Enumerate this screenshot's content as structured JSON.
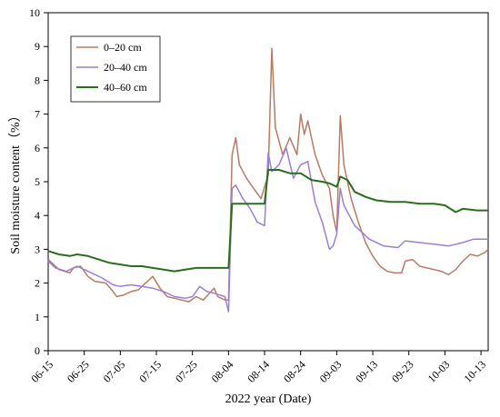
{
  "chart_data": {
    "type": "line",
    "xlabel": "2022 year (Date)",
    "ylabel": "Soil moisture content（%）",
    "ylim": [
      0,
      10
    ],
    "yticks": [
      "0",
      "1",
      "2",
      "3",
      "4",
      "5",
      "6",
      "7",
      "8",
      "9",
      "10"
    ],
    "xlim": [
      "06-15",
      "10-15"
    ],
    "xticks": [
      "06-15",
      "06-25",
      "07-05",
      "07-15",
      "07-25",
      "08-04",
      "08-14",
      "08-24",
      "09-03",
      "09-13",
      "09-23",
      "10-03",
      "10-13"
    ],
    "grid": false,
    "legend_position": "top-left",
    "series": [
      {
        "name": "0–20 cm",
        "color": "#b87a63",
        "points": [
          [
            "06-15",
            2.7
          ],
          [
            "06-18",
            2.4
          ],
          [
            "06-21",
            2.3
          ],
          [
            "06-22",
            2.45
          ],
          [
            "06-24",
            2.5
          ],
          [
            "06-26",
            2.2
          ],
          [
            "06-28",
            2.05
          ],
          [
            "07-01",
            2.0
          ],
          [
            "07-03",
            1.75
          ],
          [
            "07-04",
            1.6
          ],
          [
            "07-06",
            1.65
          ],
          [
            "07-08",
            1.75
          ],
          [
            "07-10",
            1.8
          ],
          [
            "07-11",
            1.9
          ],
          [
            "07-13",
            2.1
          ],
          [
            "07-14",
            2.2
          ],
          [
            "07-16",
            1.85
          ],
          [
            "07-18",
            1.6
          ],
          [
            "07-20",
            1.55
          ],
          [
            "07-22",
            1.5
          ],
          [
            "07-24",
            1.45
          ],
          [
            "07-26",
            1.6
          ],
          [
            "07-28",
            1.5
          ],
          [
            "07-31",
            1.85
          ],
          [
            "08-01",
            1.6
          ],
          [
            "08-03",
            1.5
          ],
          [
            "08-04",
            1.5
          ],
          [
            "08-05",
            5.8
          ],
          [
            "08-06",
            6.3
          ],
          [
            "08-07",
            5.5
          ],
          [
            "08-09",
            5.1
          ],
          [
            "08-11",
            4.8
          ],
          [
            "08-13",
            4.5
          ],
          [
            "08-15",
            5.2
          ],
          [
            "08-16",
            8.95
          ],
          [
            "08-17",
            6.6
          ],
          [
            "08-19",
            5.8
          ],
          [
            "08-21",
            6.3
          ],
          [
            "08-23",
            5.8
          ],
          [
            "08-24",
            7.0
          ],
          [
            "08-25",
            6.4
          ],
          [
            "08-26",
            6.8
          ],
          [
            "08-28",
            5.8
          ],
          [
            "08-30",
            5.2
          ],
          [
            "09-01",
            4.8
          ],
          [
            "09-02",
            4.0
          ],
          [
            "09-03",
            3.5
          ],
          [
            "09-04",
            6.95
          ],
          [
            "09-05",
            5.5
          ],
          [
            "09-07",
            4.5
          ],
          [
            "09-09",
            3.8
          ],
          [
            "09-11",
            3.2
          ],
          [
            "09-13",
            2.8
          ],
          [
            "09-15",
            2.5
          ],
          [
            "09-17",
            2.35
          ],
          [
            "09-19",
            2.3
          ],
          [
            "09-21",
            2.3
          ],
          [
            "09-22",
            2.65
          ],
          [
            "09-24",
            2.7
          ],
          [
            "09-26",
            2.5
          ],
          [
            "09-28",
            2.45
          ],
          [
            "09-30",
            2.4
          ],
          [
            "10-02",
            2.35
          ],
          [
            "10-04",
            2.25
          ],
          [
            "10-06",
            2.4
          ],
          [
            "10-08",
            2.65
          ],
          [
            "10-10",
            2.85
          ],
          [
            "10-12",
            2.8
          ],
          [
            "10-14",
            2.9
          ],
          [
            "10-15",
            3.0
          ]
        ]
      },
      {
        "name": "20–40 cm",
        "color": "#9b7fd6",
        "points": [
          [
            "06-15",
            2.65
          ],
          [
            "06-17",
            2.45
          ],
          [
            "06-20",
            2.35
          ],
          [
            "06-23",
            2.5
          ],
          [
            "06-26",
            2.35
          ],
          [
            "06-30",
            2.15
          ],
          [
            "07-03",
            1.95
          ],
          [
            "07-05",
            1.9
          ],
          [
            "07-08",
            1.95
          ],
          [
            "07-11",
            1.9
          ],
          [
            "07-14",
            1.85
          ],
          [
            "07-17",
            1.75
          ],
          [
            "07-20",
            1.6
          ],
          [
            "07-23",
            1.55
          ],
          [
            "07-25",
            1.6
          ],
          [
            "07-27",
            1.9
          ],
          [
            "07-29",
            1.75
          ],
          [
            "07-31",
            1.7
          ],
          [
            "08-03",
            1.6
          ],
          [
            "08-04",
            1.15
          ],
          [
            "08-05",
            4.8
          ],
          [
            "08-06",
            4.9
          ],
          [
            "08-08",
            4.5
          ],
          [
            "08-10",
            4.2
          ],
          [
            "08-12",
            3.8
          ],
          [
            "08-14",
            3.7
          ],
          [
            "08-15",
            5.85
          ],
          [
            "08-16",
            5.3
          ],
          [
            "08-18",
            5.5
          ],
          [
            "08-20",
            6.0
          ],
          [
            "08-22",
            5.1
          ],
          [
            "08-24",
            5.5
          ],
          [
            "08-26",
            5.6
          ],
          [
            "08-28",
            4.4
          ],
          [
            "08-30",
            3.8
          ],
          [
            "09-01",
            3.0
          ],
          [
            "09-02",
            3.1
          ],
          [
            "09-03",
            3.45
          ],
          [
            "09-04",
            4.8
          ],
          [
            "09-05",
            4.3
          ],
          [
            "09-08",
            3.7
          ],
          [
            "09-12",
            3.3
          ],
          [
            "09-16",
            3.1
          ],
          [
            "09-20",
            3.05
          ],
          [
            "09-22",
            3.25
          ],
          [
            "09-26",
            3.2
          ],
          [
            "09-30",
            3.15
          ],
          [
            "10-04",
            3.1
          ],
          [
            "10-08",
            3.2
          ],
          [
            "10-11",
            3.3
          ],
          [
            "10-15",
            3.3
          ]
        ]
      },
      {
        "name": "40–60 cm",
        "color": "#2a6e1c",
        "points": [
          [
            "06-15",
            2.95
          ],
          [
            "06-18",
            2.85
          ],
          [
            "06-21",
            2.8
          ],
          [
            "06-23",
            2.85
          ],
          [
            "06-26",
            2.8
          ],
          [
            "06-29",
            2.7
          ],
          [
            "07-02",
            2.6
          ],
          [
            "07-05",
            2.55
          ],
          [
            "07-08",
            2.5
          ],
          [
            "07-11",
            2.5
          ],
          [
            "07-14",
            2.45
          ],
          [
            "07-17",
            2.4
          ],
          [
            "07-20",
            2.35
          ],
          [
            "07-23",
            2.4
          ],
          [
            "07-26",
            2.45
          ],
          [
            "07-29",
            2.45
          ],
          [
            "08-01",
            2.45
          ],
          [
            "08-04",
            2.45
          ],
          [
            "08-05",
            4.35
          ],
          [
            "08-08",
            4.35
          ],
          [
            "08-11",
            4.35
          ],
          [
            "08-14",
            4.35
          ],
          [
            "08-15",
            5.35
          ],
          [
            "08-18",
            5.35
          ],
          [
            "08-21",
            5.25
          ],
          [
            "08-24",
            5.25
          ],
          [
            "08-27",
            5.05
          ],
          [
            "08-30",
            5.0
          ],
          [
            "09-01",
            4.95
          ],
          [
            "09-03",
            4.85
          ],
          [
            "09-04",
            5.15
          ],
          [
            "09-06",
            5.05
          ],
          [
            "09-08",
            4.7
          ],
          [
            "09-11",
            4.55
          ],
          [
            "09-14",
            4.45
          ],
          [
            "09-18",
            4.4
          ],
          [
            "09-22",
            4.4
          ],
          [
            "09-26",
            4.35
          ],
          [
            "09-30",
            4.35
          ],
          [
            "10-03",
            4.3
          ],
          [
            "10-06",
            4.1
          ],
          [
            "10-08",
            4.2
          ],
          [
            "10-12",
            4.15
          ],
          [
            "10-15",
            4.15
          ]
        ]
      }
    ]
  }
}
